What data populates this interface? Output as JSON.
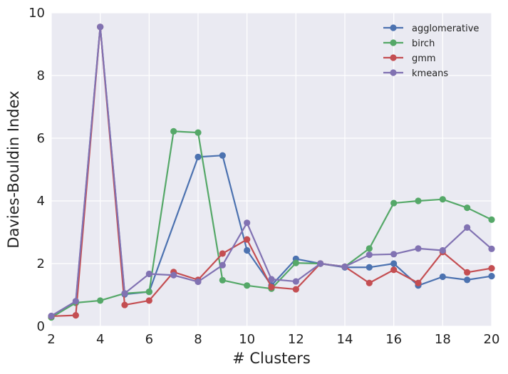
{
  "chart_data": {
    "type": "line",
    "title": "",
    "xlabel": "# Clusters",
    "ylabel": "Davies-Bouldin Index",
    "xlim": [
      2,
      20
    ],
    "ylim": [
      0,
      10
    ],
    "xticks": [
      2,
      4,
      6,
      8,
      10,
      12,
      14,
      16,
      18,
      20
    ],
    "yticks": [
      0,
      2,
      4,
      6,
      8,
      10
    ],
    "grid": true,
    "legend_position": "top-right",
    "background": "#eaeaf2",
    "x": [
      2,
      3,
      4,
      5,
      6,
      7,
      8,
      9,
      10,
      11,
      12,
      13,
      14,
      15,
      16,
      17,
      18,
      19,
      20
    ],
    "series": [
      {
        "name": "agglomerative",
        "color": "#4c72b0",
        "values": [
          0.3,
          0.75,
          9.55,
          1.02,
          1.1,
          null,
          5.4,
          5.45,
          2.42,
          1.3,
          2.15,
          2.0,
          1.88,
          1.88,
          2.0,
          1.3,
          1.58,
          1.48,
          1.6
        ]
      },
      {
        "name": "birch",
        "color": "#55a868",
        "values": [
          0.28,
          0.75,
          0.82,
          1.05,
          1.1,
          6.22,
          6.18,
          1.47,
          1.3,
          1.2,
          2.02,
          2.0,
          1.9,
          2.48,
          3.93,
          4.0,
          4.05,
          3.78,
          3.4
        ]
      },
      {
        "name": "gmm",
        "color": "#c44e52",
        "values": [
          0.32,
          0.35,
          9.55,
          0.68,
          0.82,
          1.73,
          1.48,
          2.32,
          2.77,
          1.25,
          1.18,
          2.0,
          1.9,
          1.38,
          1.8,
          1.38,
          2.37,
          1.72,
          1.85
        ]
      },
      {
        "name": "kmeans",
        "color": "#8172b2",
        "values": [
          0.33,
          0.8,
          9.55,
          1.05,
          1.67,
          1.63,
          1.42,
          1.95,
          3.3,
          1.5,
          1.43,
          2.0,
          1.9,
          2.28,
          2.3,
          2.48,
          2.42,
          3.15,
          2.47
        ]
      }
    ]
  }
}
